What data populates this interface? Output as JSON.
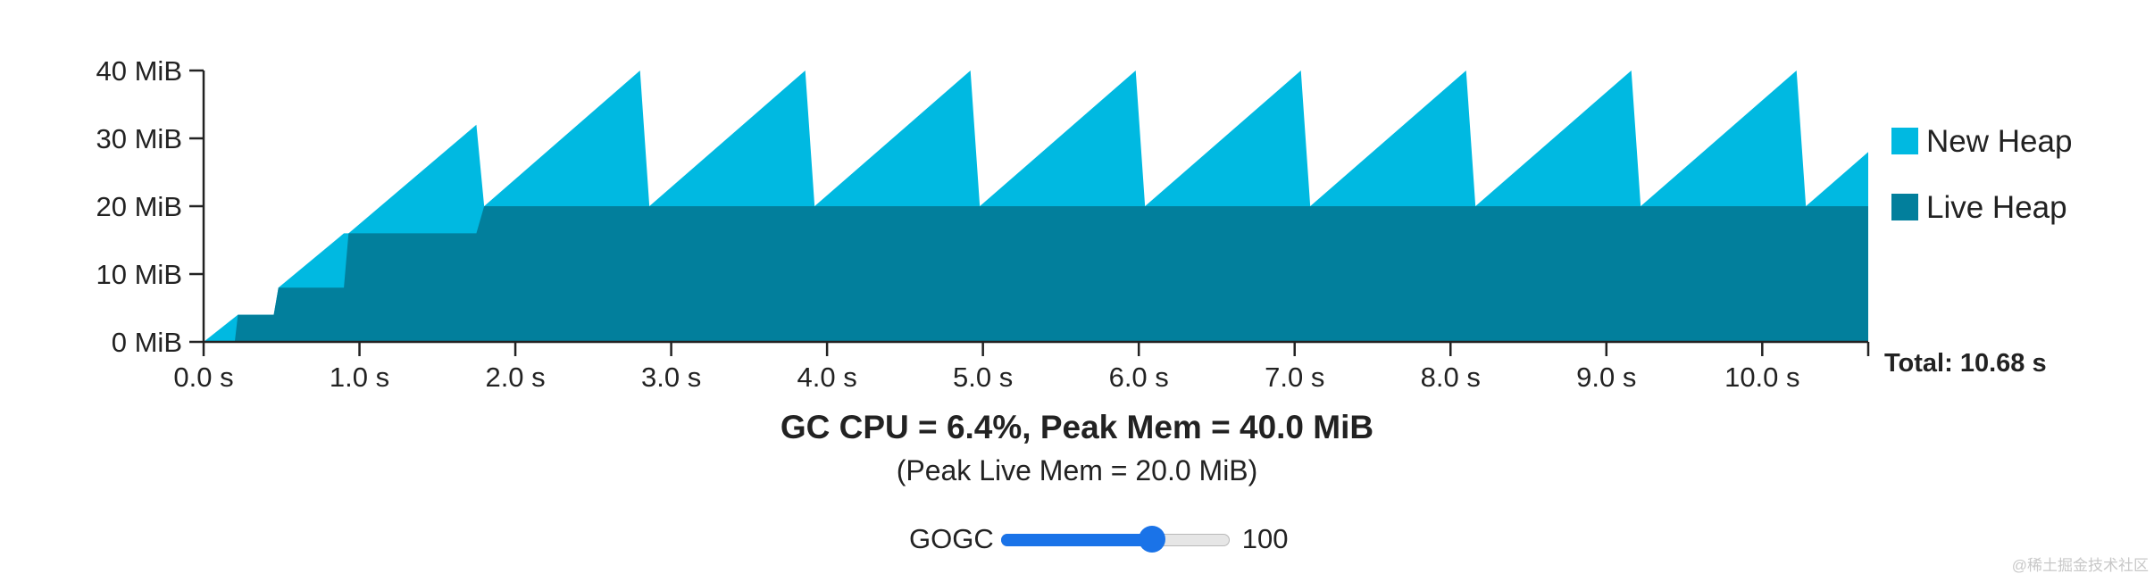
{
  "chart_data": {
    "type": "area",
    "stacked": true,
    "x_unit": "s",
    "y_unit": "MiB",
    "xlim": [
      0,
      10.68
    ],
    "ylim": [
      0,
      40
    ],
    "x_ticks": [
      0,
      1,
      2,
      3,
      4,
      5,
      6,
      7,
      8,
      9,
      10
    ],
    "x_tick_labels": [
      "0.0 s",
      "1.0 s",
      "2.0 s",
      "3.0 s",
      "4.0 s",
      "5.0 s",
      "6.0 s",
      "7.0 s",
      "8.0 s",
      "9.0 s",
      "10.0 s"
    ],
    "y_ticks": [
      0,
      10,
      20,
      30,
      40
    ],
    "y_tick_labels": [
      "0 MiB",
      "10 MiB",
      "20 MiB",
      "30 MiB",
      "40 MiB"
    ],
    "legend_position": "right",
    "series": [
      {
        "name": "Live Heap",
        "color": "#027f9c",
        "points": [
          [
            0,
            0
          ],
          [
            0.2,
            0
          ],
          [
            0.22,
            4
          ],
          [
            0.45,
            4
          ],
          [
            0.48,
            8
          ],
          [
            0.9,
            8
          ],
          [
            0.93,
            16
          ],
          [
            1.75,
            16
          ],
          [
            1.8,
            20
          ],
          [
            10.68,
            20
          ]
        ]
      },
      {
        "name": "New Heap",
        "color": "#00b9e1",
        "total_points": [
          [
            0,
            0
          ],
          [
            0.22,
            4
          ],
          [
            0.45,
            4
          ],
          [
            0.48,
            8
          ],
          [
            0.9,
            16
          ],
          [
            0.93,
            16
          ],
          [
            1.75,
            32
          ],
          [
            1.8,
            20
          ],
          [
            2.8,
            40
          ],
          [
            2.86,
            20
          ],
          [
            3.86,
            40
          ],
          [
            3.92,
            20
          ],
          [
            4.92,
            40
          ],
          [
            4.98,
            20
          ],
          [
            5.98,
            40
          ],
          [
            6.04,
            20
          ],
          [
            7.04,
            40
          ],
          [
            7.1,
            20
          ],
          [
            8.1,
            40
          ],
          [
            8.16,
            20
          ],
          [
            9.16,
            40
          ],
          [
            9.22,
            20
          ],
          [
            10.22,
            40
          ],
          [
            10.28,
            20
          ],
          [
            10.68,
            28
          ]
        ]
      }
    ],
    "total_label": "Total: 10.68 s"
  },
  "summary": {
    "main": "GC CPU = 6.4%, Peak Mem = 40.0 MiB",
    "sub": "(Peak Live Mem = 20.0 MiB)"
  },
  "gogc": {
    "label": "GOGC",
    "value": "100",
    "position_fraction": 0.66
  },
  "watermark": "@稀土掘金技术社区"
}
